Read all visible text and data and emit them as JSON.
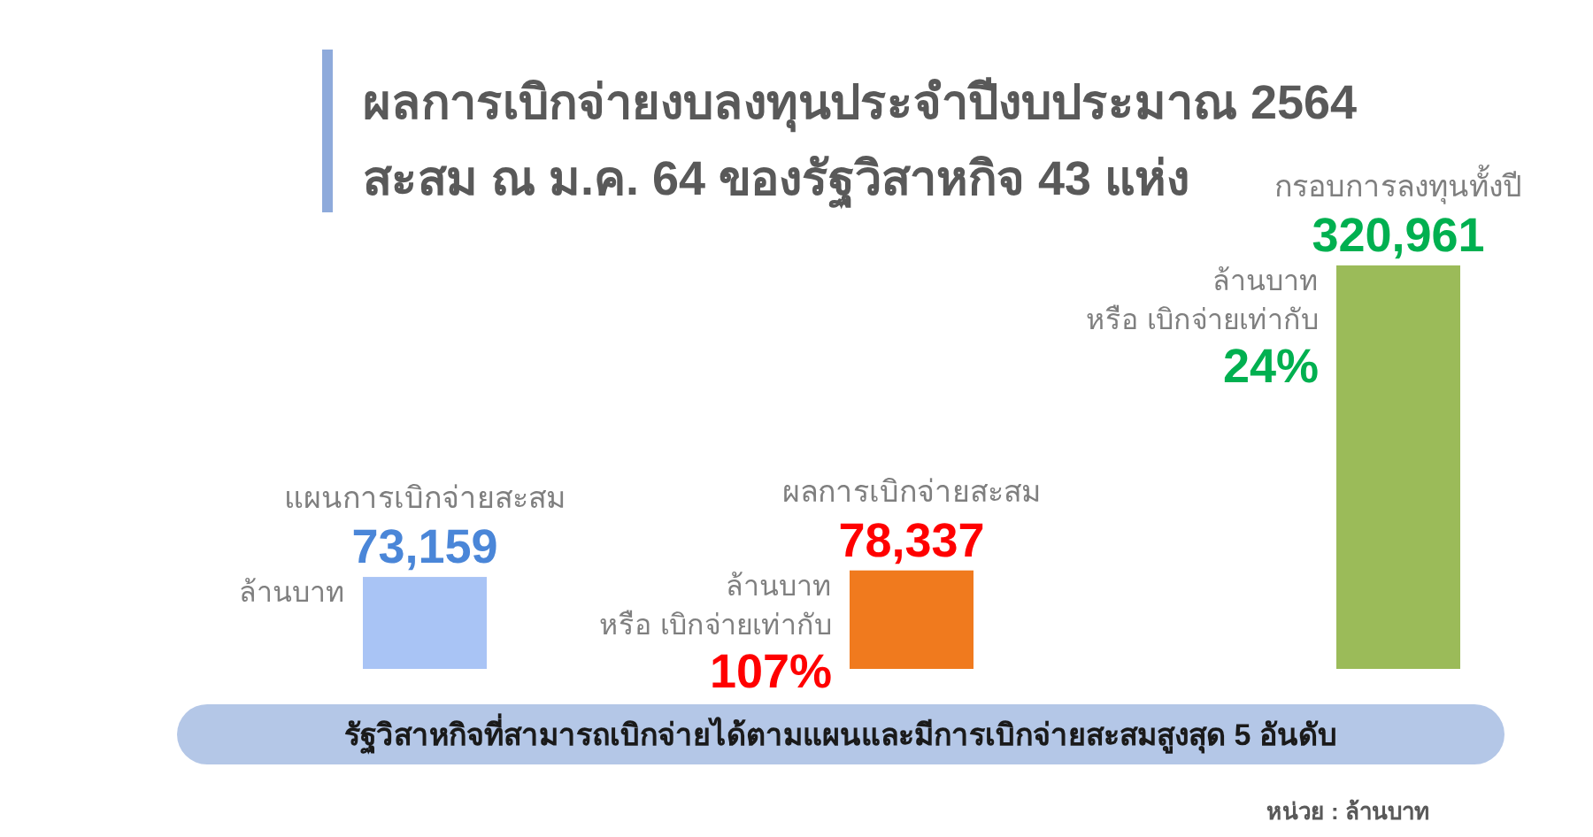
{
  "chart_data": {
    "type": "bar",
    "title": "ผลการเบิกจ่ายงบลงทุนประจำปีงบประมาณ 2564",
    "subtitle": "สะสม ณ ม.ค. 64 ของรัฐวิสาหกิจ 43 แห่ง",
    "categories": [
      "แผนการเบิกจ่ายสะสม",
      "ผลการเบิกจ่ายสะสม",
      "กรอบการลงทุนทั้งปี"
    ],
    "values": [
      73159,
      78337,
      320961
    ],
    "colors": [
      "#a9c4f5",
      "#f07a1e",
      "#9bbb59"
    ],
    "value_labels": [
      "73,159",
      "78,337",
      "320,961"
    ],
    "annotations": [
      "ล้านบาท",
      "ล้านบาท",
      "หรือ เบิกจ่ายเท่ากับ",
      "107%",
      "ล้านบาท",
      "หรือ เบิกจ่ายเท่ากับ",
      "24%",
      "รัฐวิสาหกิจที่สามารถเบิกจ่ายได้ตามแผนและมีการเบิกจ่ายสะสมสูงสุด 5 อันดับ",
      "หน่วย : ล้านบาท"
    ]
  }
}
